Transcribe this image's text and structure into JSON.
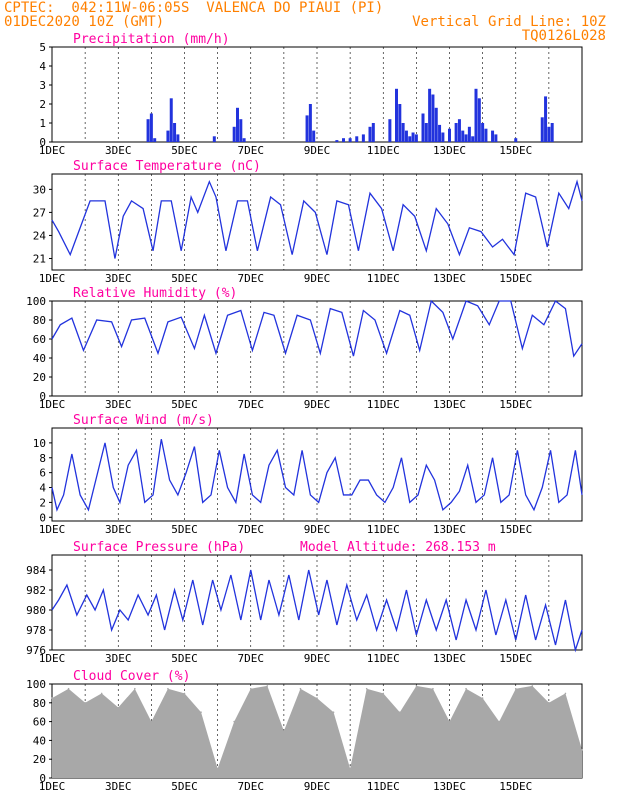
{
  "header": {
    "line1_left": "CPTEC:  042:11W-06:05S  VALENCA DO PIAUI (PI)",
    "line2_left": "01DEC2020 10Z (GMT)",
    "line2_right": "Vertical Grid Line: 10Z",
    "line3_right": "TQ0126L028"
  },
  "colors": {
    "header": "#ff8000",
    "panel_title": "#ff00a0",
    "line": "#2233dd",
    "bar": "#2233dd",
    "cloud": "#a8a8a8",
    "grid": "#000000"
  },
  "chart_data": [
    {
      "type": "bar",
      "title": "Precipitation (mm/h)",
      "ylim": [
        0,
        5
      ],
      "yticks": [
        "0",
        "1",
        "2",
        "3",
        "4",
        "5"
      ],
      "xticks": [
        "1DEC",
        "3DEC",
        "5DEC",
        "7DEC",
        "9DEC",
        "11DEC",
        "13DEC",
        "15DEC"
      ],
      "grid": "vertical dashed",
      "x": [
        2.9,
        3.0,
        3.1,
        3.5,
        3.6,
        3.7,
        3.8,
        4.9,
        5.5,
        5.6,
        5.7,
        5.8,
        7.7,
        7.8,
        7.9,
        8.6,
        8.8,
        9.0,
        9.2,
        9.4,
        9.6,
        9.7,
        10.2,
        10.4,
        10.5,
        10.6,
        10.7,
        10.8,
        10.9,
        11.0,
        11.2,
        11.3,
        11.4,
        11.5,
        11.6,
        11.7,
        11.8,
        12.0,
        12.2,
        12.3,
        12.4,
        12.5,
        12.6,
        12.7,
        12.8,
        12.9,
        13.0,
        13.1,
        13.3,
        13.4,
        14.0,
        14.8,
        14.9,
        15.0,
        15.1
      ],
      "values": [
        1.2,
        1.5,
        0.2,
        0.6,
        2.3,
        1.0,
        0.4,
        0.3,
        0.8,
        1.8,
        1.2,
        0.2,
        1.4,
        2.0,
        0.6,
        0.1,
        0.2,
        0.2,
        0.3,
        0.4,
        0.8,
        1.0,
        1.2,
        2.8,
        2.0,
        1.0,
        0.6,
        0.3,
        0.5,
        0.4,
        1.5,
        1.0,
        2.8,
        2.5,
        1.8,
        0.9,
        0.5,
        0.7,
        1.0,
        1.2,
        0.6,
        0.4,
        0.8,
        0.3,
        2.8,
        2.3,
        1.0,
        0.7,
        0.6,
        0.4,
        0.2,
        1.3,
        2.4,
        0.8,
        1.0
      ]
    },
    {
      "type": "line",
      "title": "Surface Temperature (nC)",
      "ylim": [
        19.5,
        32
      ],
      "yticks": [
        "21",
        "24",
        "27",
        "30"
      ],
      "ytick_values": [
        21,
        24,
        27,
        30
      ],
      "xticks": [
        "1DEC",
        "3DEC",
        "5DEC",
        "7DEC",
        "9DEC",
        "11DEC",
        "13DEC",
        "15DEC"
      ],
      "x": [
        0,
        0.2,
        0.55,
        0.85,
        1.15,
        1.6,
        1.9,
        2.15,
        2.4,
        2.75,
        3.05,
        3.3,
        3.6,
        3.9,
        4.2,
        4.4,
        4.75,
        4.95,
        5.25,
        5.6,
        5.9,
        6.2,
        6.6,
        6.9,
        7.25,
        7.6,
        7.95,
        8.3,
        8.6,
        8.95,
        9.25,
        9.6,
        9.95,
        10.3,
        10.6,
        10.95,
        11.3,
        11.6,
        11.95,
        12.3,
        12.6,
        12.95,
        13.3,
        13.6,
        13.95,
        14.3,
        14.6,
        14.95,
        15.3,
        15.6,
        15.85,
        16
      ],
      "values": [
        26,
        24.5,
        21.5,
        25,
        28.5,
        28.5,
        21,
        26.5,
        28.5,
        27.5,
        22,
        28.5,
        28.5,
        22,
        29,
        27,
        31,
        29,
        22,
        28.5,
        28.5,
        22,
        29,
        28,
        21.5,
        28.5,
        27,
        21.5,
        28.5,
        28,
        22,
        29.5,
        27.5,
        22,
        28,
        26.5,
        22,
        27.5,
        25.5,
        21.5,
        25,
        24.5,
        22.5,
        23.5,
        21.5,
        29.5,
        29,
        22.5,
        29.5,
        27.5,
        31,
        28.5
      ]
    },
    {
      "type": "line",
      "title": "Relative Humidity (%)",
      "ylim": [
        0,
        100
      ],
      "yticks": [
        "0",
        "20",
        "40",
        "60",
        "80",
        "100"
      ],
      "ytick_values": [
        0,
        20,
        40,
        60,
        80,
        100
      ],
      "xticks": [
        "1DEC",
        "3DEC",
        "5DEC",
        "7DEC",
        "9DEC",
        "11DEC",
        "13DEC",
        "15DEC"
      ],
      "x": [
        0,
        0.25,
        0.6,
        0.95,
        1.35,
        1.8,
        2.1,
        2.4,
        2.8,
        3.2,
        3.5,
        3.9,
        4.3,
        4.6,
        4.95,
        5.3,
        5.7,
        6.05,
        6.4,
        6.7,
        7.05,
        7.4,
        7.8,
        8.1,
        8.4,
        8.75,
        9.1,
        9.4,
        9.75,
        10.1,
        10.5,
        10.8,
        11.1,
        11.45,
        11.8,
        12.1,
        12.5,
        12.85,
        13.2,
        13.5,
        13.85,
        14.2,
        14.5,
        14.85,
        15.2,
        15.5,
        15.75,
        16
      ],
      "values": [
        60,
        75,
        82,
        48,
        80,
        78,
        52,
        80,
        82,
        45,
        78,
        83,
        50,
        85,
        45,
        85,
        90,
        48,
        88,
        85,
        45,
        85,
        80,
        45,
        92,
        88,
        42,
        90,
        80,
        45,
        90,
        85,
        48,
        100,
        88,
        60,
        100,
        95,
        75,
        100,
        100,
        50,
        85,
        75,
        100,
        92,
        42,
        55
      ]
    },
    {
      "type": "line",
      "title": "Surface Wind (m/s)",
      "ylim": [
        -0.5,
        12
      ],
      "yticks": [
        "0",
        "2",
        "4",
        "6",
        "8",
        "10"
      ],
      "ytick_values": [
        0,
        2,
        4,
        6,
        8,
        10
      ],
      "xticks": [
        "1DEC",
        "3DEC",
        "5DEC",
        "7DEC",
        "9DEC",
        "11DEC",
        "13DEC",
        "15DEC"
      ],
      "x": [
        0,
        0.15,
        0.35,
        0.6,
        0.85,
        1.1,
        1.35,
        1.6,
        1.85,
        2.05,
        2.3,
        2.55,
        2.8,
        3.05,
        3.3,
        3.55,
        3.8,
        4.05,
        4.3,
        4.55,
        4.8,
        5.05,
        5.3,
        5.55,
        5.8,
        6.05,
        6.3,
        6.55,
        6.8,
        7.05,
        7.3,
        7.55,
        7.8,
        8.05,
        8.3,
        8.55,
        8.8,
        9.05,
        9.3,
        9.55,
        9.8,
        10.05,
        10.3,
        10.55,
        10.8,
        11.05,
        11.3,
        11.55,
        11.8,
        12.05,
        12.3,
        12.55,
        12.8,
        13.05,
        13.3,
        13.55,
        13.8,
        14.05,
        14.3,
        14.55,
        14.8,
        15.05,
        15.3,
        15.55,
        15.8,
        16
      ],
      "values": [
        4,
        1,
        3,
        8.5,
        3,
        1,
        5.5,
        10,
        4,
        2,
        7,
        9,
        2,
        3,
        10.5,
        5,
        3,
        6,
        9.5,
        2,
        3,
        9,
        4,
        2,
        8.5,
        3,
        2,
        7,
        9,
        4,
        3,
        9,
        3,
        2,
        6,
        8,
        3,
        3,
        5,
        5,
        3,
        2,
        4,
        8,
        2,
        3,
        7,
        5,
        1,
        2,
        3.5,
        7,
        2,
        3,
        8,
        2,
        3,
        9,
        3,
        1,
        4,
        9,
        2,
        3,
        9,
        3
      ]
    },
    {
      "type": "line",
      "title": "Surface Pressure (hPa)",
      "annotation": "Model Altitude: 268.153 m",
      "ylim": [
        976,
        985.5
      ],
      "yticks": [
        "976",
        "978",
        "980",
        "982",
        "984"
      ],
      "ytick_values": [
        976,
        978,
        980,
        982,
        984
      ],
      "xticks": [
        "1DEC",
        "3DEC",
        "5DEC",
        "7DEC",
        "9DEC",
        "11DEC",
        "13DEC",
        "15DEC"
      ],
      "x": [
        0,
        0.2,
        0.45,
        0.75,
        1.05,
        1.3,
        1.55,
        1.8,
        2.05,
        2.3,
        2.6,
        2.9,
        3.15,
        3.4,
        3.7,
        3.95,
        4.25,
        4.55,
        4.85,
        5.1,
        5.4,
        5.7,
        6,
        6.3,
        6.55,
        6.85,
        7.15,
        7.45,
        7.75,
        8.05,
        8.3,
        8.6,
        8.9,
        9.2,
        9.5,
        9.8,
        10.1,
        10.4,
        10.7,
        11,
        11.3,
        11.6,
        11.9,
        12.2,
        12.5,
        12.8,
        13.1,
        13.4,
        13.7,
        14,
        14.3,
        14.6,
        14.9,
        15.2,
        15.5,
        15.8,
        16
      ],
      "values": [
        980,
        981,
        982.5,
        979.5,
        981.5,
        980,
        982,
        978,
        980,
        979,
        981.5,
        979.5,
        981.5,
        978,
        982,
        979,
        983,
        978.5,
        983,
        980,
        983.5,
        979,
        984,
        979,
        983,
        979.5,
        983.5,
        979,
        984,
        979.5,
        983,
        978.5,
        982.5,
        979,
        981.5,
        978,
        981,
        978,
        982,
        977.5,
        981,
        978,
        981,
        977,
        981,
        978,
        982,
        977.5,
        981,
        977,
        981.5,
        977,
        980.5,
        976.5,
        981,
        976,
        978
      ]
    },
    {
      "type": "bar",
      "title": "Cloud Cover (%)",
      "ylim": [
        0,
        100
      ],
      "yticks": [
        "0",
        "20",
        "40",
        "60",
        "80",
        "100"
      ],
      "ytick_values": [
        0,
        20,
        40,
        60,
        80,
        100
      ],
      "xticks": [
        "1DEC",
        "3DEC",
        "5DEC",
        "7DEC",
        "9DEC",
        "11DEC",
        "13DEC",
        "15DEC"
      ],
      "x": [
        0,
        0.5,
        1,
        1.5,
        2,
        2.5,
        3,
        3.5,
        4,
        4.5,
        5,
        5.5,
        6,
        6.5,
        7,
        7.5,
        8,
        8.5,
        9,
        9.5,
        10,
        10.5,
        11,
        11.5,
        12,
        12.5,
        13,
        13.5,
        14,
        14.5,
        15,
        15.5,
        16
      ],
      "values": [
        85,
        95,
        80,
        90,
        75,
        95,
        60,
        95,
        90,
        70,
        10,
        60,
        95,
        98,
        50,
        95,
        85,
        70,
        10,
        95,
        90,
        70,
        98,
        95,
        60,
        95,
        85,
        60,
        95,
        98,
        80,
        90,
        30
      ]
    }
  ]
}
